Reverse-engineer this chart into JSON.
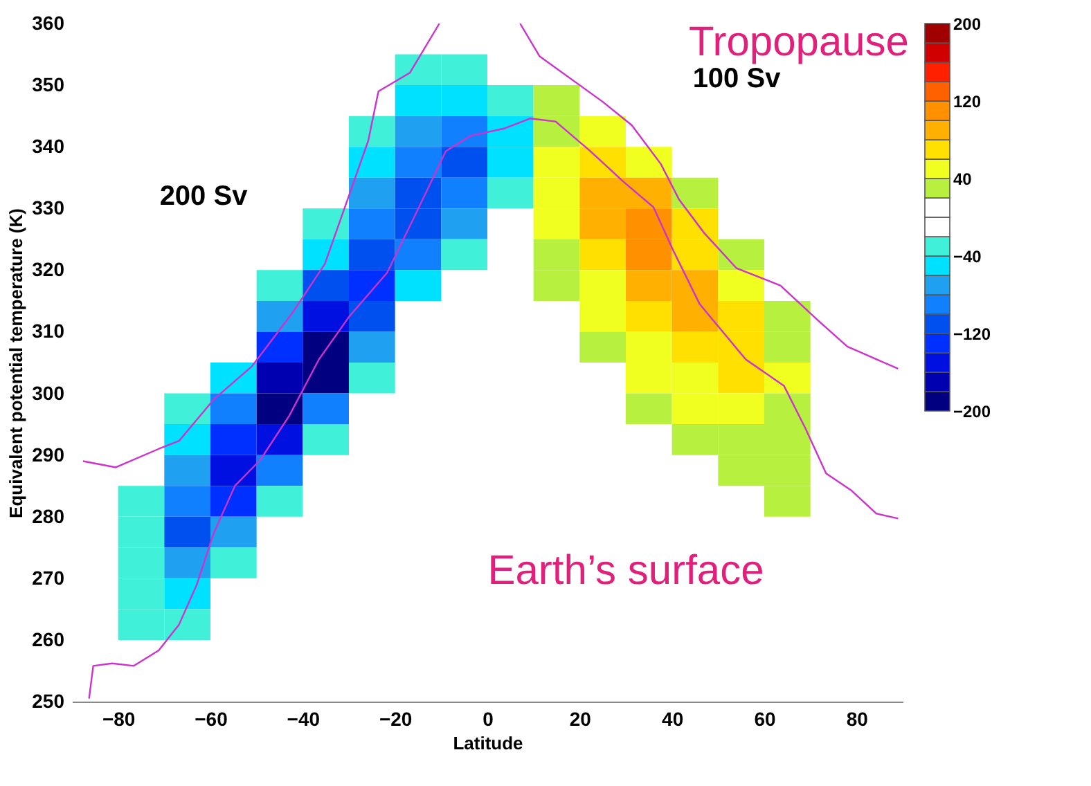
{
  "chart_data": {
    "type": "heatmap",
    "xlabel": "Latitude",
    "ylabel": "Equivalent potential temperature (K)",
    "x": [
      -85,
      -75,
      -65,
      -55,
      -45,
      -35,
      -25,
      -15,
      -5,
      5,
      15,
      25,
      35,
      45,
      55,
      65,
      75,
      85
    ],
    "y": [
      352.5,
      347.5,
      342.5,
      337.5,
      332.5,
      327.5,
      322.5,
      317.5,
      312.5,
      307.5,
      302.5,
      297.5,
      292.5,
      287.5,
      282.5,
      277.5,
      272.5,
      267.5,
      262.5
    ],
    "cells": [
      [
        null,
        null,
        null,
        null,
        null,
        null,
        null,
        -30,
        -30,
        null,
        null,
        null,
        null,
        null,
        null,
        null,
        null,
        null
      ],
      [
        null,
        null,
        null,
        null,
        null,
        null,
        null,
        -50,
        -50,
        -30,
        30,
        null,
        null,
        null,
        null,
        null,
        null,
        null
      ],
      [
        null,
        null,
        null,
        null,
        null,
        null,
        -30,
        -70,
        -90,
        -50,
        30,
        50,
        null,
        null,
        null,
        null,
        null,
        null
      ],
      [
        null,
        null,
        null,
        null,
        null,
        null,
        -50,
        -90,
        -110,
        -50,
        50,
        70,
        50,
        null,
        null,
        null,
        null,
        null
      ],
      [
        null,
        null,
        null,
        null,
        null,
        null,
        -70,
        -110,
        -90,
        -30,
        50,
        90,
        90,
        30,
        null,
        null,
        null,
        null
      ],
      [
        null,
        null,
        null,
        null,
        null,
        -30,
        -90,
        -110,
        -70,
        null,
        50,
        90,
        110,
        70,
        null,
        null,
        null,
        null
      ],
      [
        null,
        null,
        null,
        null,
        null,
        -50,
        -110,
        -90,
        -30,
        null,
        30,
        70,
        110,
        70,
        30,
        null,
        null,
        null
      ],
      [
        null,
        null,
        null,
        null,
        -30,
        -110,
        -130,
        -50,
        null,
        null,
        30,
        50,
        90,
        90,
        50,
        null,
        null,
        null
      ],
      [
        null,
        null,
        null,
        null,
        -70,
        -150,
        -110,
        null,
        null,
        null,
        null,
        50,
        70,
        90,
        70,
        30,
        null,
        null
      ],
      [
        null,
        null,
        null,
        null,
        -130,
        -190,
        -70,
        null,
        null,
        null,
        null,
        30,
        50,
        70,
        70,
        30,
        null,
        null
      ],
      [
        null,
        null,
        null,
        -50,
        -170,
        -190,
        -30,
        null,
        null,
        null,
        null,
        null,
        50,
        50,
        70,
        50,
        null,
        null
      ],
      [
        null,
        null,
        -30,
        -90,
        -190,
        -90,
        null,
        null,
        null,
        null,
        null,
        null,
        30,
        50,
        50,
        30,
        null,
        null
      ],
      [
        null,
        null,
        -50,
        -130,
        -150,
        -30,
        null,
        null,
        null,
        null,
        null,
        null,
        null,
        30,
        30,
        30,
        null,
        null
      ],
      [
        null,
        null,
        -70,
        -150,
        -90,
        null,
        null,
        null,
        null,
        null,
        null,
        null,
        null,
        null,
        30,
        30,
        null,
        null
      ],
      [
        null,
        -30,
        -90,
        -130,
        -30,
        null,
        null,
        null,
        null,
        null,
        null,
        null,
        null,
        null,
        null,
        30,
        null,
        null
      ],
      [
        null,
        -30,
        -110,
        -70,
        null,
        null,
        null,
        null,
        null,
        null,
        null,
        null,
        null,
        null,
        null,
        null,
        null,
        null
      ],
      [
        null,
        -30,
        -70,
        -30,
        null,
        null,
        null,
        null,
        null,
        null,
        null,
        null,
        null,
        null,
        null,
        null,
        null,
        null
      ],
      [
        null,
        -30,
        -50,
        null,
        null,
        null,
        null,
        null,
        null,
        null,
        null,
        null,
        null,
        null,
        null,
        null,
        null,
        null
      ],
      [
        null,
        -30,
        -30,
        null,
        null,
        null,
        null,
        null,
        null,
        null,
        null,
        null,
        null,
        null,
        null,
        null,
        null,
        null
      ]
    ],
    "colors": [
      "#000080",
      "#0000b0",
      "#0010e0",
      "#0030ff",
      "#0050f0",
      "#1080ff",
      "#20a0f0",
      "#00e0ff",
      "#40f0d8",
      "#ffffff",
      "#ffffff",
      "#b8f040",
      "#f0ff20",
      "#ffe000",
      "#ffb000",
      "#ff9000",
      "#ff6000",
      "#ff2000",
      "#d00000",
      "#a00000"
    ],
    "clim": [
      -200,
      200
    ],
    "cticks": [
      -200,
      -120,
      -40,
      40,
      120,
      200
    ],
    "xlim": [
      -90,
      90
    ],
    "xticks": [
      -80,
      -60,
      -40,
      -20,
      0,
      20,
      40,
      60,
      80
    ],
    "ylim": [
      250,
      360
    ],
    "yticks": [
      250,
      260,
      270,
      280,
      290,
      300,
      310,
      320,
      330,
      340,
      350,
      360
    ],
    "series": [
      {
        "type": "line",
        "color": "#cc33cc",
        "x": [
          -87.6,
          -80.5,
          -71.2,
          -66.8,
          -59.3,
          -51,
          -42.3,
          -35.2,
          -30.5,
          -25.8,
          -23.6,
          -16.8,
          -10.4,
          0,
          7.1,
          11.3,
          25,
          31.3,
          37.6,
          41.5,
          47,
          54,
          63.5,
          71.7,
          78,
          89
        ],
        "values": [
          289,
          288,
          291,
          292.3,
          299,
          304.4,
          313,
          321,
          331,
          341,
          349,
          352,
          360,
          null,
          360,
          354.7,
          347.3,
          343.5,
          337.2,
          331.5,
          326,
          320.3,
          317.5,
          311.8,
          307.6,
          304
        ]
      },
      {
        "type": "line",
        "color": "#cc33cc",
        "x": [
          -86.3,
          -85.4,
          -81.3,
          -76.6,
          -71.2,
          -66.8,
          -63,
          -59.3,
          -54.7,
          -49.2,
          -42.9,
          -36.5,
          -30,
          -21.7,
          -15.4,
          -9,
          -3.6,
          3.8,
          9.3,
          14.8,
          22.3,
          29.4,
          36,
          40.4,
          46,
          56,
          64.3,
          69,
          73.4,
          78.8,
          84.3,
          89
        ],
        "values": [
          250.5,
          255.8,
          256.2,
          255.8,
          258.3,
          262.5,
          268.9,
          277.3,
          285,
          289.2,
          296.4,
          305.5,
          312.4,
          319.6,
          329.3,
          339.3,
          341.8,
          343,
          344.6,
          344.1,
          339.3,
          334.4,
          330.2,
          323,
          314.5,
          305.5,
          301.2,
          294.2,
          287,
          284.3,
          280.5,
          279.7
        ]
      }
    ],
    "annotations": [
      "200 Sv",
      "100 Sv",
      "Tropopause",
      "Earth’s surface"
    ],
    "grid": false
  }
}
